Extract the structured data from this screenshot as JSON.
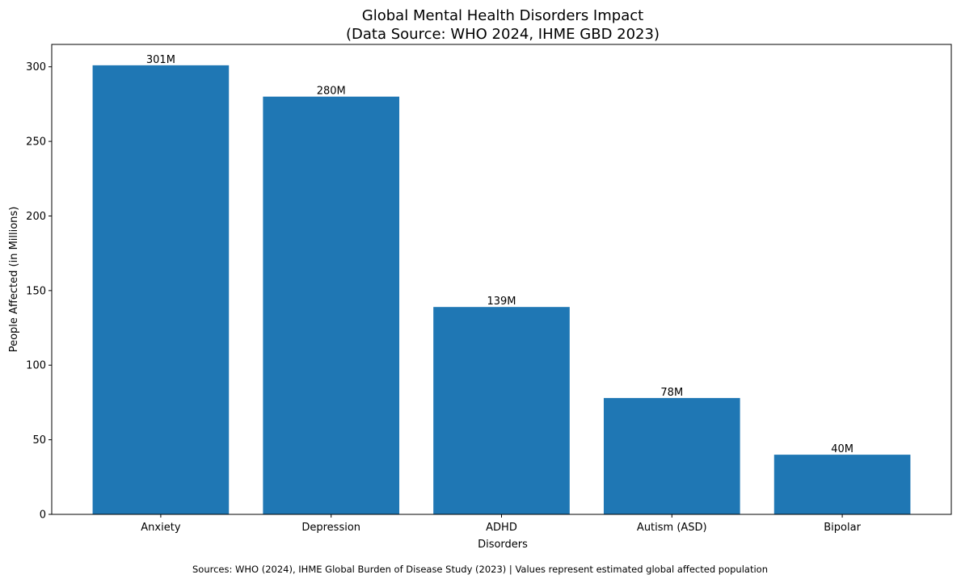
{
  "chart_data": {
    "type": "bar",
    "title": "Global Mental Health Disorders Impact",
    "subtitle": "(Data Source: WHO 2024, IHME GBD 2023)",
    "xlabel": "Disorders",
    "ylabel": "People Affected (in Millions)",
    "categories": [
      "Anxiety",
      "Depression",
      "ADHD",
      "Autism (ASD)",
      "Bipolar"
    ],
    "values": [
      301,
      280,
      139,
      78,
      40
    ],
    "data_labels": [
      "301M",
      "280M",
      "139M",
      "78M",
      "40M"
    ],
    "ylim": [
      0,
      315
    ],
    "yticks": [
      0,
      50,
      100,
      150,
      200,
      250,
      300
    ],
    "grid": false,
    "bar_color": "#1f77b4"
  },
  "footnote": "Sources: WHO (2024), IHME Global Burden of Disease Study (2023) | Values represent estimated global affected population"
}
